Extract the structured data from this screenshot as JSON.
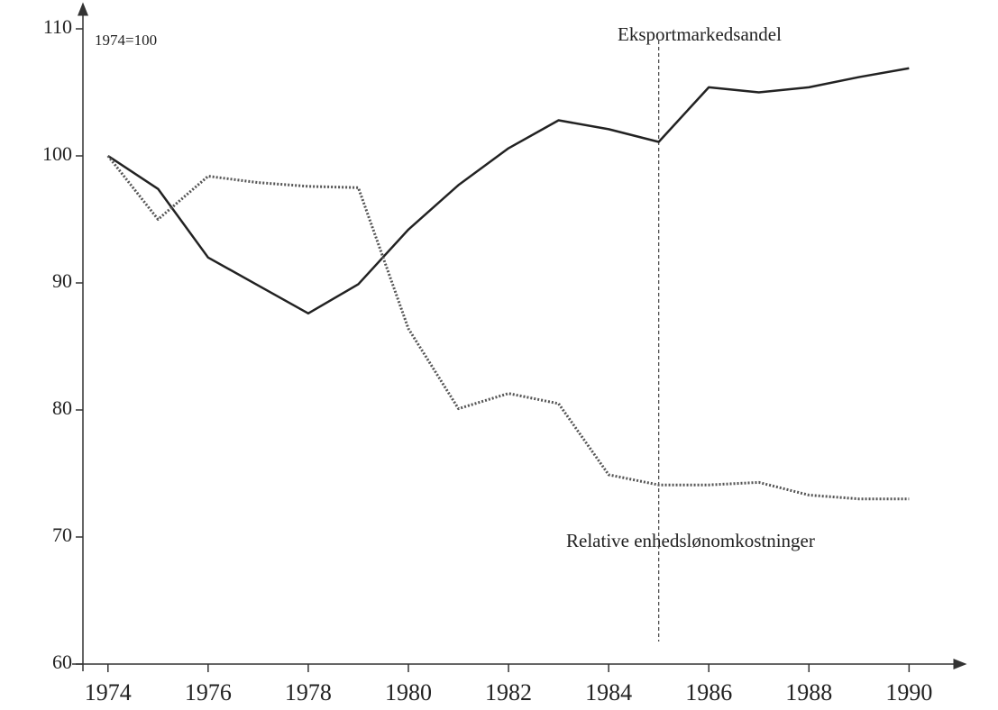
{
  "chart_data": {
    "type": "line",
    "annotations": [
      "1974=100",
      "Eksportmarkedsandel",
      "Relative enhedslønomkostninger"
    ],
    "x": [
      1974,
      1975,
      1976,
      1977,
      1978,
      1979,
      1980,
      1981,
      1982,
      1983,
      1984,
      1985,
      1986,
      1987,
      1988,
      1989,
      1990
    ],
    "series": [
      {
        "name": "Eksportmarkedsandel",
        "color": "#222222",
        "dash": "solid",
        "values": [
          100,
          97.4,
          92,
          89.8,
          87.6,
          89.9,
          94.2,
          97.7,
          100.6,
          102.8,
          102.1,
          101.1,
          105.4,
          105,
          105.4,
          106.2,
          106.9
        ]
      },
      {
        "name": "Relative enhedslønomkostninger",
        "color": "#555555",
        "dash": "dotted",
        "values": [
          100,
          95,
          98.4,
          97.9,
          97.6,
          97.5,
          86.4,
          80.1,
          81.3,
          80.5,
          74.9,
          74.1,
          74.1,
          74.3,
          73.3,
          73,
          73
        ]
      }
    ],
    "vline": 1985,
    "xlim": [
      1973.5,
      1990.75
    ],
    "xticks": [
      1974,
      1976,
      1978,
      1980,
      1982,
      1984,
      1986,
      1988,
      1990
    ],
    "ylim": [
      60,
      110
    ],
    "yticks": [
      60,
      70,
      80,
      90,
      100,
      110
    ]
  }
}
